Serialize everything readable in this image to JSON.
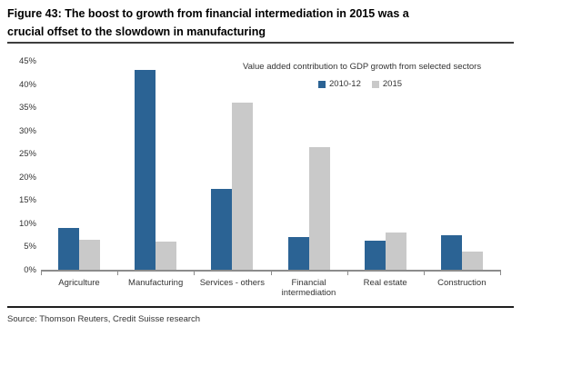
{
  "figure": {
    "title_line1": "Figure 43: The boost to growth from financial intermediation in 2015 was a",
    "title_line2": "crucial offset to the slowdown in manufacturing",
    "source": "Source: Thomson Reuters, Credit Suisse research"
  },
  "chart_data": {
    "type": "bar",
    "title": "Value added contribution to GDP growth from selected sectors",
    "categories": [
      "Agriculture",
      "Manufacturing",
      "Services - others",
      "Financial intermediation",
      "Real estate",
      "Construction"
    ],
    "series": [
      {
        "name": "2010-12",
        "color": "#2b6394",
        "values": [
          9,
          43,
          17.5,
          7,
          6.3,
          7.5
        ]
      },
      {
        "name": "2015",
        "color": "#c9c9c9",
        "values": [
          6.5,
          6,
          36,
          26.5,
          8,
          4
        ]
      }
    ],
    "xlabel": "",
    "ylabel": "",
    "ylim": [
      0,
      45
    ],
    "y_tick_labels": [
      "0%",
      "5%",
      "10%",
      "15%",
      "20%",
      "25%",
      "30%",
      "35%",
      "40%",
      "45%"
    ],
    "y_tick_step": 5,
    "grid": false,
    "legend_position": "top-center"
  }
}
